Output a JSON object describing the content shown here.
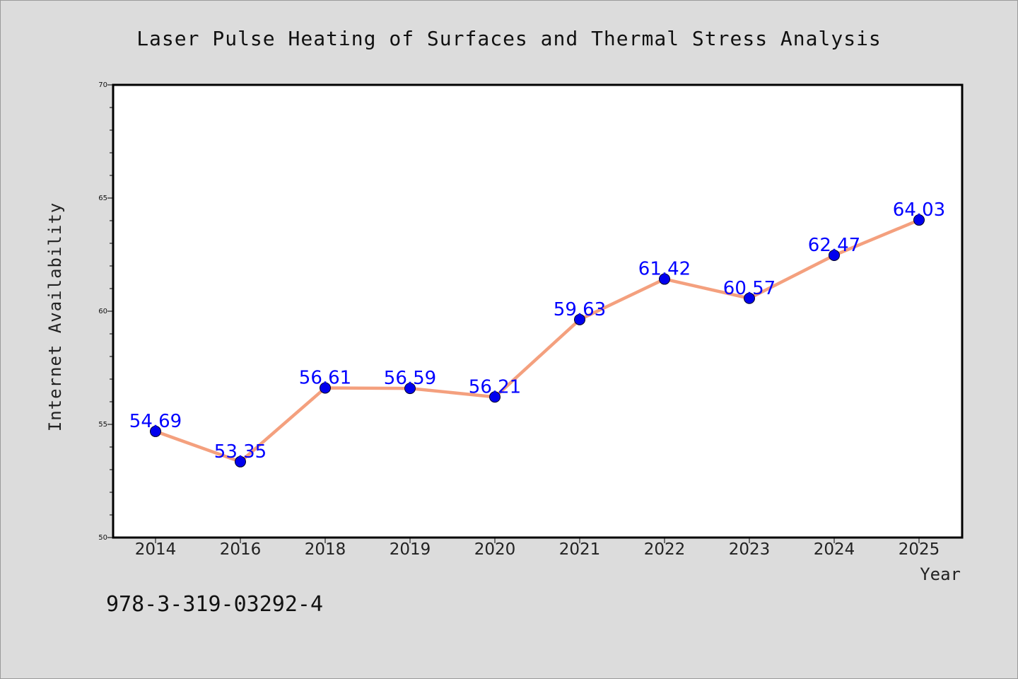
{
  "chart_data": {
    "type": "line",
    "title": "Laser Pulse Heating of Surfaces and Thermal Stress Analysis",
    "xlabel": "Year",
    "ylabel": "Internet Availability",
    "categories": [
      "2014",
      "2016",
      "2018",
      "2019",
      "2020",
      "2021",
      "2022",
      "2023",
      "2024",
      "2025"
    ],
    "series": [
      {
        "values": [
          54.69,
          53.35,
          56.61,
          56.59,
          56.21,
          59.63,
          61.42,
          60.57,
          62.47,
          64.03
        ]
      }
    ],
    "data_labels": [
      "54.69",
      "53.35",
      "56.61",
      "56.59",
      "56.21",
      "59.63",
      "61.42",
      "60.57",
      "62.47",
      "64.03"
    ],
    "ylim": [
      50,
      70
    ],
    "yticks": [
      "50",
      "55",
      "60",
      "65",
      "70"
    ],
    "grid": false,
    "line_color": "#f4a07e",
    "marker_color": "#0000ee",
    "label_color": "#0000ff"
  },
  "footer": {
    "isbn": "978-3-319-03292-4"
  }
}
